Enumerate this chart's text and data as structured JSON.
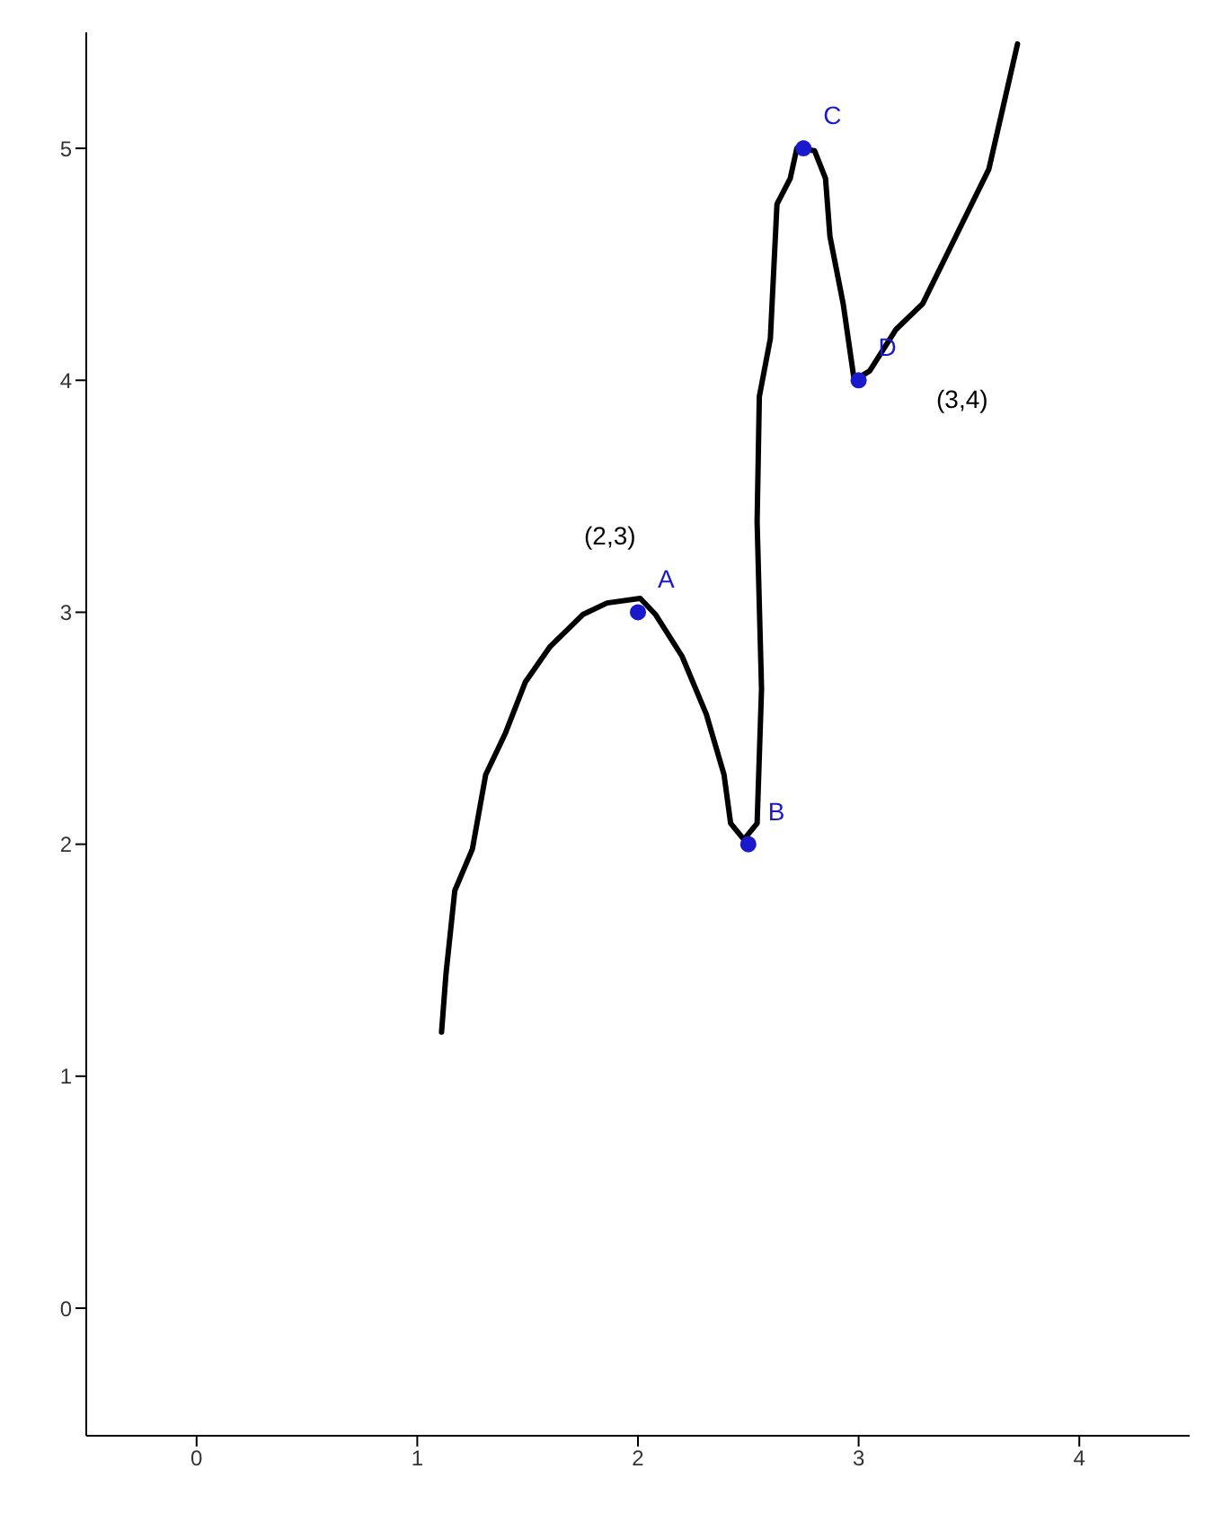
{
  "chart_data": {
    "type": "line",
    "xlim": [
      -0.5,
      4.5
    ],
    "ylim": [
      -0.55,
      5.5
    ],
    "xticks": [
      0,
      1,
      2,
      3,
      4
    ],
    "yticks": [
      0,
      1,
      2,
      3,
      4,
      5
    ],
    "grid": false,
    "line_style": "solid",
    "series": [
      {
        "color": "#000000",
        "marker": "none",
        "x": [
          1.11,
          1.13,
          1.17,
          1.25,
          1.31,
          1.4,
          1.49,
          1.6,
          1.75,
          1.86,
          2.01,
          2.08,
          2.2,
          2.31,
          2.39,
          2.42,
          2.48,
          2.54,
          2.56,
          2.54,
          2.55,
          2.6,
          2.63,
          2.69,
          2.72,
          2.8,
          2.85,
          2.87,
          2.93,
          2.98,
          3.05,
          3.17,
          3.29,
          3.44,
          3.59,
          3.72
        ],
        "values": [
          1.19,
          1.44,
          1.8,
          1.98,
          2.3,
          2.48,
          2.7,
          2.85,
          2.99,
          3.04,
          3.06,
          2.99,
          2.81,
          2.56,
          2.3,
          2.09,
          2.02,
          2.09,
          2.67,
          3.39,
          3.93,
          4.18,
          4.76,
          4.87,
          5,
          4.99,
          4.87,
          4.62,
          4.33,
          4,
          4.04,
          4.22,
          4.33,
          4.62,
          4.91,
          5.45
        ]
      },
      {
        "type": "scatter",
        "color": "#1a1acc",
        "marker": "circle",
        "x": [
          2,
          2.5,
          2.75,
          3
        ],
        "values": [
          3,
          2,
          5,
          4
        ],
        "value_labels": [
          "A",
          "B",
          "C",
          "D"
        ]
      }
    ],
    "annotations": [
      "(2,3)",
      "(3,4)"
    ]
  }
}
